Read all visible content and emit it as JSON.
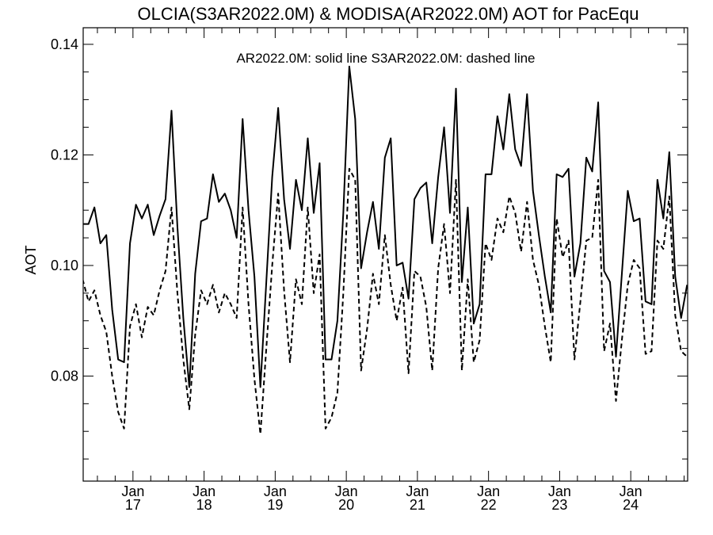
{
  "chart_data": {
    "type": "line",
    "title": "OLCIA(S3AR2022.0M) & MODISA(AR2022.0M)  AOT for PacEqu",
    "annotation": "AR2022.0M: solid line   S3AR2022.0M: dashed line",
    "xlabel": "",
    "ylabel": "AOT",
    "ylim": [
      0.061,
      0.143
    ],
    "xlim": [
      2016.3,
      2024.8
    ],
    "grid": false,
    "yticks": [
      "0.08",
      "0.10",
      "0.12",
      "0.14"
    ],
    "x_ticks": [
      {
        "month": "Jan",
        "year": "17",
        "x": 2017.0
      },
      {
        "month": "Jan",
        "year": "18",
        "x": 2018.0
      },
      {
        "month": "Jan",
        "year": "19",
        "x": 2019.0
      },
      {
        "month": "Jan",
        "year": "20",
        "x": 2020.0
      },
      {
        "month": "Jan",
        "year": "21",
        "x": 2021.0
      },
      {
        "month": "Jan",
        "year": "22",
        "x": 2022.0
      },
      {
        "month": "Jan",
        "year": "23",
        "x": 2023.0
      },
      {
        "month": "Jan",
        "year": "24",
        "x": 2024.0
      }
    ],
    "series": [
      {
        "name": "AR2022.0M",
        "style": "solid",
        "color": "#000000",
        "x": [
          2016.292,
          2016.375,
          2016.458,
          2016.542,
          2016.625,
          2016.708,
          2016.792,
          2016.875,
          2016.958,
          2017.042,
          2017.125,
          2017.208,
          2017.292,
          2017.375,
          2017.458,
          2017.542,
          2017.625,
          2017.708,
          2017.792,
          2017.875,
          2017.958,
          2018.042,
          2018.125,
          2018.208,
          2018.292,
          2018.375,
          2018.458,
          2018.542,
          2018.625,
          2018.708,
          2018.792,
          2018.875,
          2018.958,
          2019.042,
          2019.125,
          2019.208,
          2019.292,
          2019.375,
          2019.458,
          2019.542,
          2019.625,
          2019.708,
          2019.792,
          2019.875,
          2019.958,
          2020.042,
          2020.125,
          2020.208,
          2020.292,
          2020.375,
          2020.458,
          2020.542,
          2020.625,
          2020.708,
          2020.792,
          2020.875,
          2020.958,
          2021.042,
          2021.125,
          2021.208,
          2021.292,
          2021.375,
          2021.458,
          2021.542,
          2021.625,
          2021.708,
          2021.792,
          2021.875,
          2021.958,
          2022.042,
          2022.125,
          2022.208,
          2022.292,
          2022.375,
          2022.458,
          2022.542,
          2022.625,
          2022.708,
          2022.792,
          2022.875,
          2022.958,
          2023.042,
          2023.125,
          2023.208,
          2023.292,
          2023.375,
          2023.458,
          2023.542,
          2023.625,
          2023.708,
          2023.792,
          2023.875,
          2023.958,
          2024.042,
          2024.125,
          2024.208,
          2024.292,
          2024.375,
          2024.458,
          2024.542,
          2024.625,
          2024.708,
          2024.792
        ],
        "y": [
          0.1075,
          0.1075,
          0.1105,
          0.104,
          0.1055,
          0.092,
          0.083,
          0.0825,
          0.104,
          0.111,
          0.1085,
          0.111,
          0.1055,
          0.109,
          0.112,
          0.128,
          0.107,
          0.0905,
          0.078,
          0.0985,
          0.108,
          0.1085,
          0.1165,
          0.1115,
          0.113,
          0.11,
          0.105,
          0.1265,
          0.11,
          0.098,
          0.078,
          0.097,
          0.116,
          0.1285,
          0.112,
          0.103,
          0.1155,
          0.11,
          0.123,
          0.1095,
          0.1185,
          0.083,
          0.083,
          0.09,
          0.1095,
          0.136,
          0.1265,
          0.0995,
          0.106,
          0.1115,
          0.103,
          0.1195,
          0.123,
          0.1,
          0.1005,
          0.094,
          0.112,
          0.114,
          0.115,
          0.104,
          0.116,
          0.125,
          0.1095,
          0.132,
          0.097,
          0.1105,
          0.0895,
          0.093,
          0.1165,
          0.1165,
          0.127,
          0.121,
          0.131,
          0.121,
          0.118,
          0.131,
          0.1135,
          0.1055,
          0.098,
          0.0915,
          0.1165,
          0.116,
          0.1175,
          0.098,
          0.104,
          0.1195,
          0.117,
          0.1295,
          0.099,
          0.097,
          0.0835,
          0.0985,
          0.1135,
          0.108,
          0.1085,
          0.0935,
          0.093,
          0.1155,
          0.1085,
          0.1205,
          0.098,
          0.0905,
          0.0965
        ]
      },
      {
        "name": "S3AR2022.0M",
        "style": "dashed",
        "color": "#000000",
        "x": [
          2016.292,
          2016.375,
          2016.458,
          2016.542,
          2016.625,
          2016.708,
          2016.792,
          2016.875,
          2016.958,
          2017.042,
          2017.125,
          2017.208,
          2017.292,
          2017.375,
          2017.458,
          2017.542,
          2017.625,
          2017.708,
          2017.792,
          2017.875,
          2017.958,
          2018.042,
          2018.125,
          2018.208,
          2018.292,
          2018.375,
          2018.458,
          2018.542,
          2018.625,
          2018.708,
          2018.792,
          2018.875,
          2018.958,
          2019.042,
          2019.125,
          2019.208,
          2019.292,
          2019.375,
          2019.458,
          2019.542,
          2019.625,
          2019.708,
          2019.792,
          2019.875,
          2019.958,
          2020.042,
          2020.125,
          2020.208,
          2020.292,
          2020.375,
          2020.458,
          2020.542,
          2020.625,
          2020.708,
          2020.792,
          2020.875,
          2020.958,
          2021.042,
          2021.125,
          2021.208,
          2021.292,
          2021.375,
          2021.458,
          2021.542,
          2021.625,
          2021.708,
          2021.792,
          2021.875,
          2021.958,
          2022.042,
          2022.125,
          2022.208,
          2022.292,
          2022.375,
          2022.458,
          2022.542,
          2022.625,
          2022.708,
          2022.792,
          2022.875,
          2022.958,
          2023.042,
          2023.125,
          2023.208,
          2023.292,
          2023.375,
          2023.458,
          2023.542,
          2023.625,
          2023.708,
          2023.792,
          2023.875,
          2023.958,
          2024.042,
          2024.125,
          2024.208,
          2024.292,
          2024.375,
          2024.458,
          2024.542,
          2024.625,
          2024.708,
          2024.792
        ],
        "y": [
          0.0975,
          0.0935,
          0.0955,
          0.091,
          0.088,
          0.08,
          0.0735,
          0.0705,
          0.089,
          0.093,
          0.087,
          0.0925,
          0.091,
          0.0955,
          0.099,
          0.1105,
          0.095,
          0.083,
          0.074,
          0.0875,
          0.0955,
          0.093,
          0.0965,
          0.0915,
          0.095,
          0.093,
          0.0905,
          0.1105,
          0.093,
          0.0795,
          0.0695,
          0.085,
          0.1,
          0.113,
          0.0955,
          0.0825,
          0.0975,
          0.093,
          0.1105,
          0.095,
          0.102,
          0.0705,
          0.0725,
          0.077,
          0.095,
          0.1175,
          0.1155,
          0.081,
          0.0885,
          0.0985,
          0.093,
          0.1055,
          0.0965,
          0.09,
          0.096,
          0.0805,
          0.099,
          0.098,
          0.0925,
          0.081,
          0.0995,
          0.1075,
          0.095,
          0.1155,
          0.081,
          0.0975,
          0.0825,
          0.0865,
          0.104,
          0.101,
          0.1085,
          0.106,
          0.1125,
          0.1095,
          0.1025,
          0.1115,
          0.101,
          0.0965,
          0.089,
          0.0825,
          0.1085,
          0.1015,
          0.1045,
          0.083,
          0.0935,
          0.1045,
          0.105,
          0.1155,
          0.0845,
          0.0895,
          0.0755,
          0.0865,
          0.0965,
          0.101,
          0.0995,
          0.084,
          0.0845,
          0.1045,
          0.103,
          0.1125,
          0.091,
          0.0845,
          0.0835
        ]
      }
    ]
  }
}
